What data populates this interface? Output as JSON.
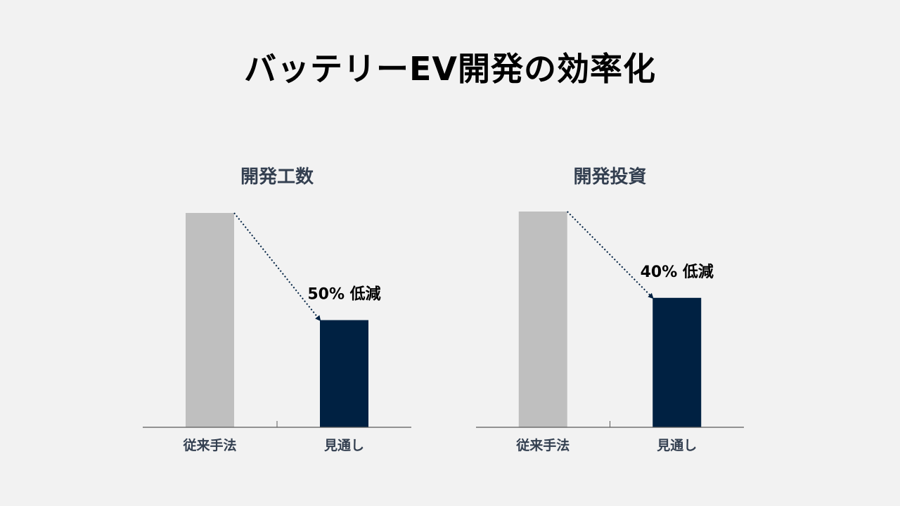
{
  "title": "バッテリーEV開発の効率化",
  "colors": {
    "baseline_bar": "#bfbfbf",
    "forecast_bar": "#002142",
    "axis": "#595959",
    "arrow": "#002142",
    "chart_title": "#333f50",
    "tick_label": "#333f50",
    "annotation": "#000000"
  },
  "chart_data": [
    {
      "type": "bar",
      "title": "開発工数",
      "categories": [
        "従来手法",
        "見通し"
      ],
      "values": [
        100,
        50
      ],
      "ylim": [
        0,
        100
      ],
      "annotation": "50% 低減",
      "grid": false
    },
    {
      "type": "bar",
      "title": "開発投資",
      "categories": [
        "従来手法",
        "見通し"
      ],
      "values": [
        100,
        60
      ],
      "ylim": [
        0,
        100
      ],
      "annotation": "40% 低減",
      "grid": false
    }
  ]
}
